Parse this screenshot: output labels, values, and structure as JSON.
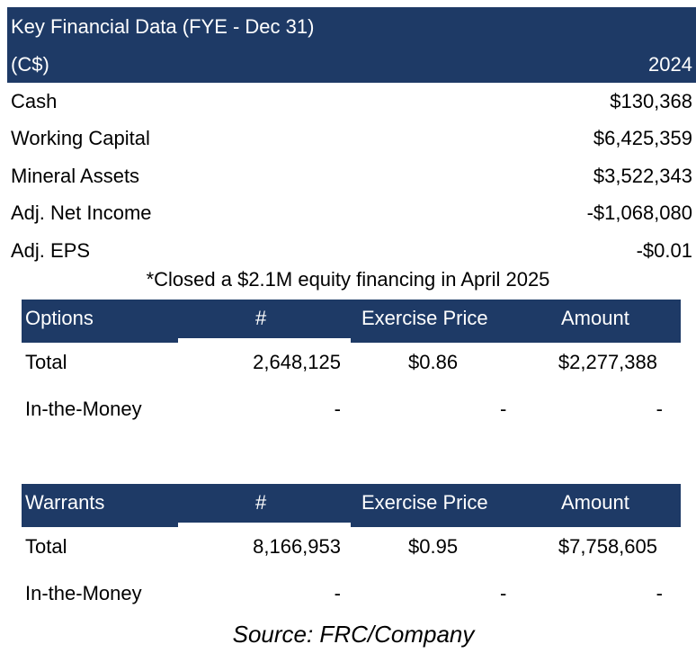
{
  "key_financial": {
    "title": "Key Financial Data (FYE - Dec 31)",
    "currency": "(C$)",
    "year": "2024",
    "rows": [
      {
        "label": "Cash",
        "value": "$130,368"
      },
      {
        "label": "Working Capital",
        "value": "$6,425,359"
      },
      {
        "label": "Mineral Assets",
        "value": "$3,522,343"
      },
      {
        "label": "Adj. Net Income",
        "value": "-$1,068,080"
      },
      {
        "label": "Adj. EPS",
        "value": "-$0.01"
      }
    ]
  },
  "note": "*Closed a $2.1M equity financing in April 2025",
  "options": {
    "headers": [
      "Options",
      "#",
      "Exercise Price",
      "Amount"
    ],
    "rows": [
      [
        "Total",
        "2,648,125",
        "$0.86",
        "$2,277,388"
      ],
      [
        "In-the-Money",
        "-",
        "-",
        "-"
      ]
    ]
  },
  "warrants": {
    "headers": [
      "Warrants",
      "#",
      "Exercise Price",
      "Amount"
    ],
    "rows": [
      [
        "Total",
        "8,166,953",
        "$0.95",
        "$7,758,605"
      ],
      [
        "In-the-Money",
        "-",
        "-",
        "-"
      ]
    ]
  },
  "source": "Source: FRC/Company",
  "colors": {
    "header_bg": "#1e3a66",
    "header_text": "#ffffff"
  }
}
